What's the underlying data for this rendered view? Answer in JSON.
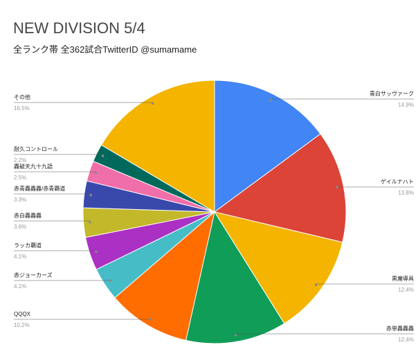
{
  "chart_data": {
    "type": "pie",
    "title": "NEW DIVISION 5/4",
    "subtitle": "全ランク帯 全362試合TwitterID @sumamame",
    "categories": [
      "青白サッヴァーク",
      "ゲイルナハト",
      "黒魔導具",
      "赤単轟轟轟",
      "QQQX",
      "赤ジョーカーズ",
      "ラッカ覇道",
      "赤白轟轟轟",
      "赤青轟轟轟/赤青覇道",
      "轟破天九十九語",
      "耐久コントロール",
      "その他"
    ],
    "values": [
      14.9,
      13.8,
      12.4,
      12.4,
      10.2,
      4.1,
      4.1,
      3.6,
      3.3,
      2.5,
      2.2,
      16.5
    ],
    "value_labels": [
      "14.9%",
      "13.8%",
      "12.4%",
      "12.4%",
      "10.2%",
      "4.1%",
      "4.1%",
      "3.6%",
      "3.3%",
      "2.5%",
      "2.2%",
      "16.5%"
    ],
    "colors": [
      "#4285f4",
      "#db4437",
      "#f4b400",
      "#0f9d58",
      "#ff6d00",
      "#46bdc6",
      "#ab30c4",
      "#c2b82a",
      "#3949ab",
      "#f06eaa",
      "#00695c",
      "#f4b400"
    ]
  }
}
